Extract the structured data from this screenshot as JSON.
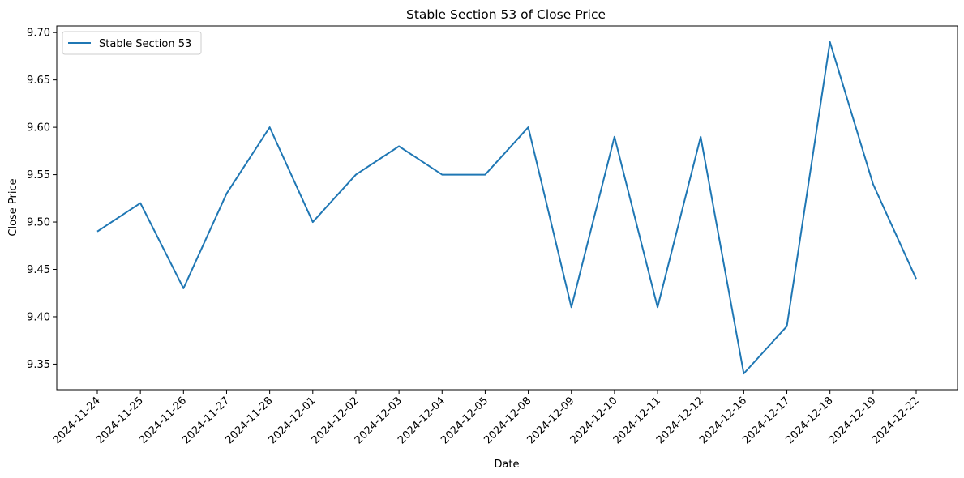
{
  "chart_data": {
    "type": "line",
    "title": "Stable Section 53 of Close Price",
    "xlabel": "Date",
    "ylabel": "Close Price",
    "categories": [
      "2024-11-24",
      "2024-11-25",
      "2024-11-26",
      "2024-11-27",
      "2024-11-28",
      "2024-12-01",
      "2024-12-02",
      "2024-12-03",
      "2024-12-04",
      "2024-12-05",
      "2024-12-08",
      "2024-12-09",
      "2024-12-10",
      "2024-12-11",
      "2024-12-12",
      "2024-12-16",
      "2024-12-17",
      "2024-12-18",
      "2024-12-19",
      "2024-12-22"
    ],
    "series": [
      {
        "name": "Stable Section 53",
        "color": "#1f77b4",
        "values": [
          9.49,
          9.52,
          9.43,
          9.53,
          9.6,
          9.5,
          9.55,
          9.58,
          9.55,
          9.55,
          9.6,
          9.41,
          9.59,
          9.41,
          9.59,
          9.34,
          9.39,
          9.69,
          9.54,
          9.44
        ]
      }
    ],
    "yticks": [
      "9.35",
      "9.40",
      "9.45",
      "9.50",
      "9.55",
      "9.60",
      "9.65",
      "9.70"
    ],
    "ylim": [
      9.323,
      9.707
    ],
    "grid": false,
    "legend_position": "upper-left"
  }
}
